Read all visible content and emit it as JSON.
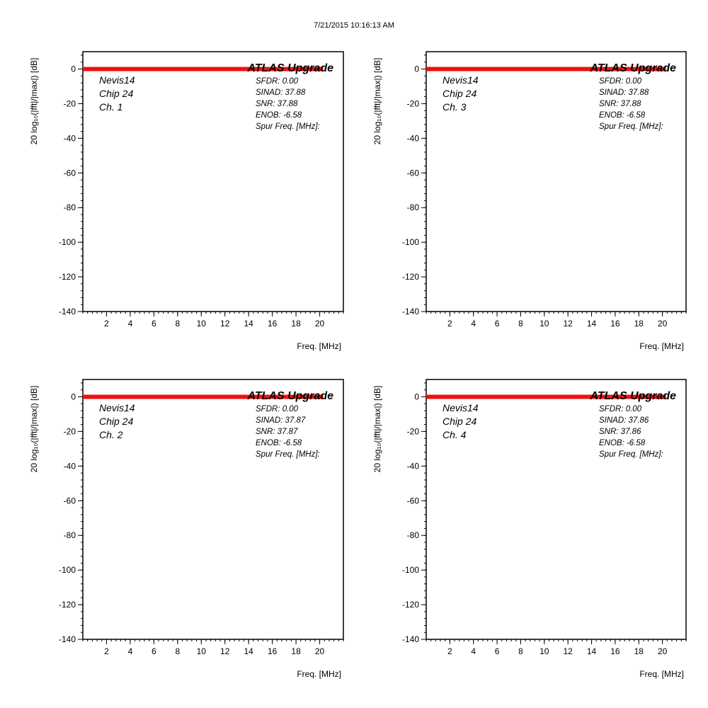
{
  "timestamp": "7/21/2015 10:16:13 AM",
  "colors": {
    "trace": "#ee1111",
    "frame": "#000000",
    "background": "#ffffff"
  },
  "chart_data": [
    {
      "type": "line",
      "brand": "ATLAS Upgrade",
      "chip_lines": [
        "Nevis14",
        "Chip 24",
        "Ch. 1"
      ],
      "stats": [
        "SFDR: 0.00",
        "SINAD: 37.88",
        "SNR: 37.88",
        "ENOB: -6.58",
        "Spur Freq. [MHz]:"
      ],
      "xlabel": "Freq. [MHz]",
      "ylabel": "20 log₁₀(|fft|/|max|)  [dB]",
      "xlim": [
        0,
        22
      ],
      "ylim": [
        -140,
        10
      ],
      "xticks": [
        2,
        4,
        6,
        8,
        10,
        12,
        14,
        16,
        18,
        20
      ],
      "yticks": [
        0,
        -20,
        -40,
        -60,
        -80,
        -100,
        -120,
        -140
      ],
      "series": [
        {
          "x": [
            0,
            20.3
          ],
          "y": [
            0,
            0
          ]
        }
      ]
    },
    {
      "type": "line",
      "brand": "ATLAS Upgrade",
      "chip_lines": [
        "Nevis14",
        "Chip 24",
        "Ch. 3"
      ],
      "stats": [
        "SFDR: 0.00",
        "SINAD: 37.88",
        "SNR: 37.88",
        "ENOB: -6.58",
        "Spur Freq. [MHz]:"
      ],
      "xlabel": "Freq. [MHz]",
      "ylabel": "20 log₁₀(|fft|/|max|)  [dB]",
      "xlim": [
        0,
        22
      ],
      "ylim": [
        -140,
        10
      ],
      "xticks": [
        2,
        4,
        6,
        8,
        10,
        12,
        14,
        16,
        18,
        20
      ],
      "yticks": [
        0,
        -20,
        -40,
        -60,
        -80,
        -100,
        -120,
        -140
      ],
      "series": [
        {
          "x": [
            0,
            20.3
          ],
          "y": [
            0,
            0
          ]
        }
      ]
    },
    {
      "type": "line",
      "brand": "ATLAS Upgrade",
      "chip_lines": [
        "Nevis14",
        "Chip 24",
        "Ch. 2"
      ],
      "stats": [
        "SFDR: 0.00",
        "SINAD: 37.87",
        "SNR: 37.87",
        "ENOB: -6.58",
        "Spur Freq. [MHz]:"
      ],
      "xlabel": "Freq. [MHz]",
      "ylabel": "20 log₁₀(|fft|/|max|)  [dB]",
      "xlim": [
        0,
        22
      ],
      "ylim": [
        -140,
        10
      ],
      "xticks": [
        2,
        4,
        6,
        8,
        10,
        12,
        14,
        16,
        18,
        20
      ],
      "yticks": [
        0,
        -20,
        -40,
        -60,
        -80,
        -100,
        -120,
        -140
      ],
      "series": [
        {
          "x": [
            0,
            20.3
          ],
          "y": [
            0,
            0
          ]
        }
      ]
    },
    {
      "type": "line",
      "brand": "ATLAS Upgrade",
      "chip_lines": [
        "Nevis14",
        "Chip 24",
        "Ch. 4"
      ],
      "stats": [
        "SFDR: 0.00",
        "SINAD: 37.86",
        "SNR: 37.86",
        "ENOB: -6.58",
        "Spur Freq. [MHz]:"
      ],
      "xlabel": "Freq. [MHz]",
      "ylabel": "20 log₁₀(|fft|/|max|)  [dB]",
      "xlim": [
        0,
        22
      ],
      "ylim": [
        -140,
        10
      ],
      "xticks": [
        2,
        4,
        6,
        8,
        10,
        12,
        14,
        16,
        18,
        20
      ],
      "yticks": [
        0,
        -20,
        -40,
        -60,
        -80,
        -100,
        -120,
        -140
      ],
      "series": [
        {
          "x": [
            0,
            20.3
          ],
          "y": [
            0,
            0
          ]
        }
      ]
    }
  ]
}
